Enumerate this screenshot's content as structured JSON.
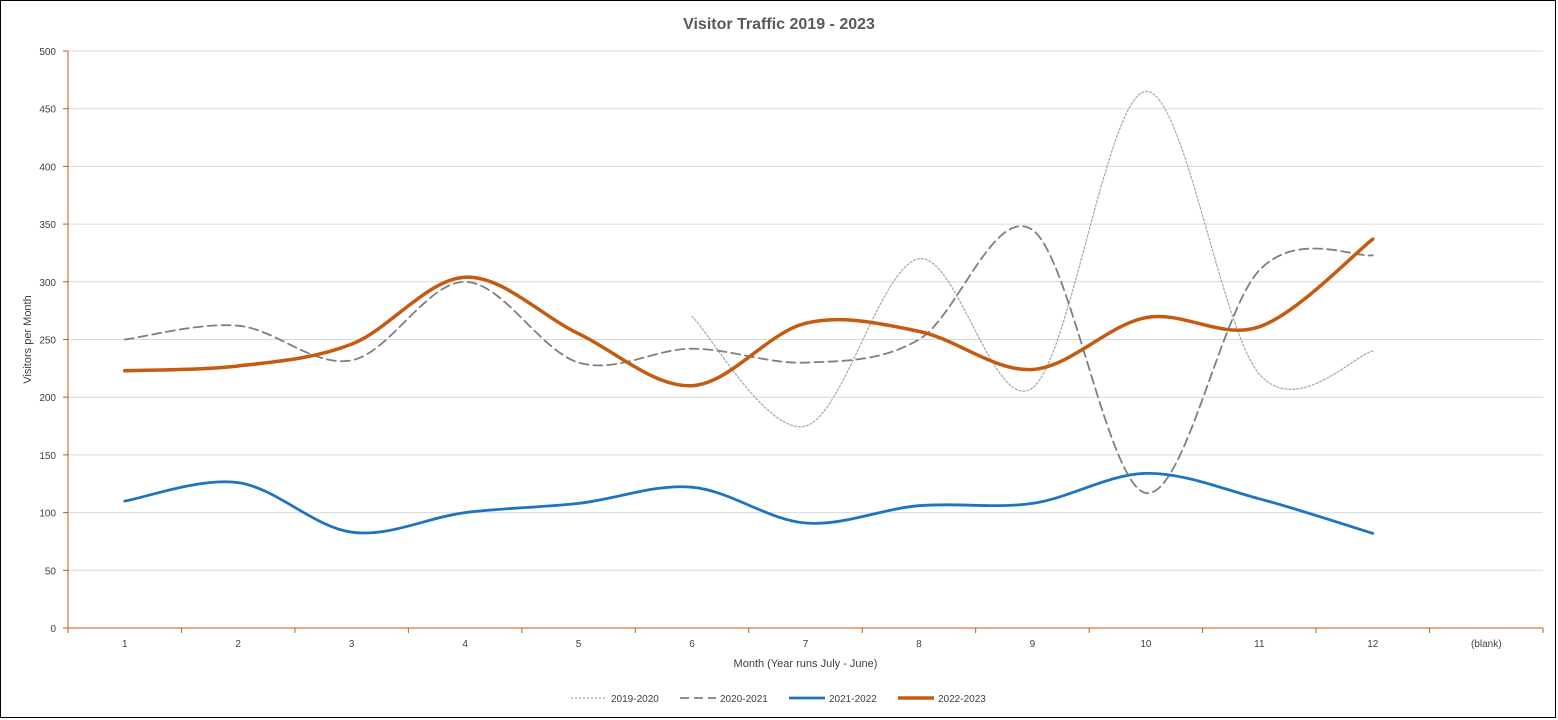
{
  "chart_data": {
    "type": "line",
    "title": "Visitor Traffic 2019 - 2023",
    "xlabel": "Month (Year runs July - June)",
    "ylabel": "Visitors per Month",
    "categories": [
      "1",
      "2",
      "3",
      "4",
      "5",
      "6",
      "7",
      "8",
      "9",
      "10",
      "11",
      "12",
      "(blank)"
    ],
    "ylim": [
      0,
      500
    ],
    "yticks": [
      "0",
      "50",
      "100",
      "150",
      "200",
      "250",
      "300",
      "350",
      "400",
      "450",
      "500"
    ],
    "grid": true,
    "legend_position": "bottom",
    "series": [
      {
        "name": "2019-2020",
        "style": "dotted",
        "color": "#a6a6a6",
        "values": [
          null,
          null,
          null,
          null,
          null,
          270,
          175,
          320,
          208,
          465,
          220,
          240,
          null
        ]
      },
      {
        "name": "2020-2021",
        "style": "dashed",
        "color": "#7f7f7f",
        "values": [
          250,
          262,
          232,
          300,
          230,
          242,
          230,
          250,
          345,
          117,
          310,
          323,
          null
        ]
      },
      {
        "name": "2021-2022",
        "style": "solid",
        "color": "#1f74bf",
        "values": [
          110,
          126,
          83,
          100,
          108,
          122,
          91,
          106,
          108,
          134,
          112,
          82,
          null
        ]
      },
      {
        "name": "2022-2023",
        "style": "solid-thick",
        "color": "#c55a11",
        "values": [
          223,
          227,
          246,
          304,
          255,
          210,
          264,
          257,
          224,
          269,
          261,
          337,
          null
        ]
      }
    ]
  }
}
